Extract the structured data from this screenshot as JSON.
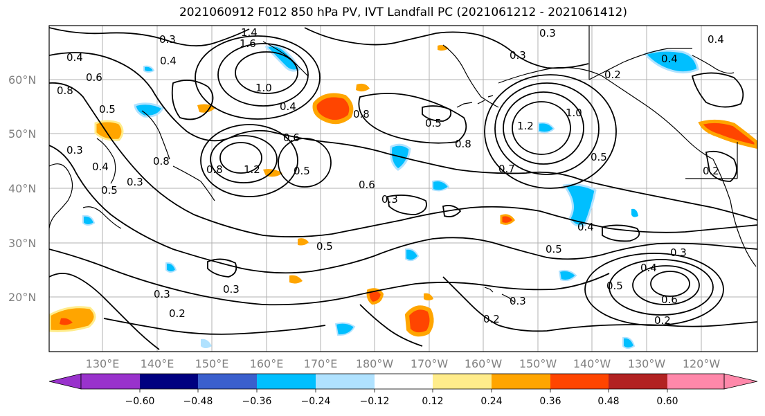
{
  "title": "2021060912 F012 850 hPa PV, IVT Landfall PC (2021061212 - 2021061412)",
  "map": {
    "lat_labels": [
      "60°N",
      "50°N",
      "40°N",
      "30°N",
      "20°N"
    ],
    "lon_labels": [
      "130°E",
      "140°E",
      "150°E",
      "160°E",
      "170°E",
      "180°W",
      "170°W",
      "160°W",
      "150°W",
      "140°W",
      "130°W",
      "120°W"
    ],
    "contour_labels": [
      "0.3",
      "0.4",
      "0.5",
      "0.6",
      "0.8",
      "1.0",
      "1.2",
      "1.4",
      "1.6",
      "0.2",
      "0.7"
    ],
    "grid": true
  },
  "colorbar": {
    "ticks": [
      "−0.60",
      "−0.48",
      "−0.36",
      "−0.24",
      "−0.12",
      "0.12",
      "0.24",
      "0.36",
      "0.48",
      "0.60"
    ],
    "colors": [
      "#9932cc",
      "#000080",
      "#3a5fcd",
      "#00bfff",
      "#b0e2ff",
      "#ffffff",
      "#ffec8b",
      "#ffa500",
      "#ff4500",
      "#b22222",
      "#ff88aa"
    ]
  }
}
